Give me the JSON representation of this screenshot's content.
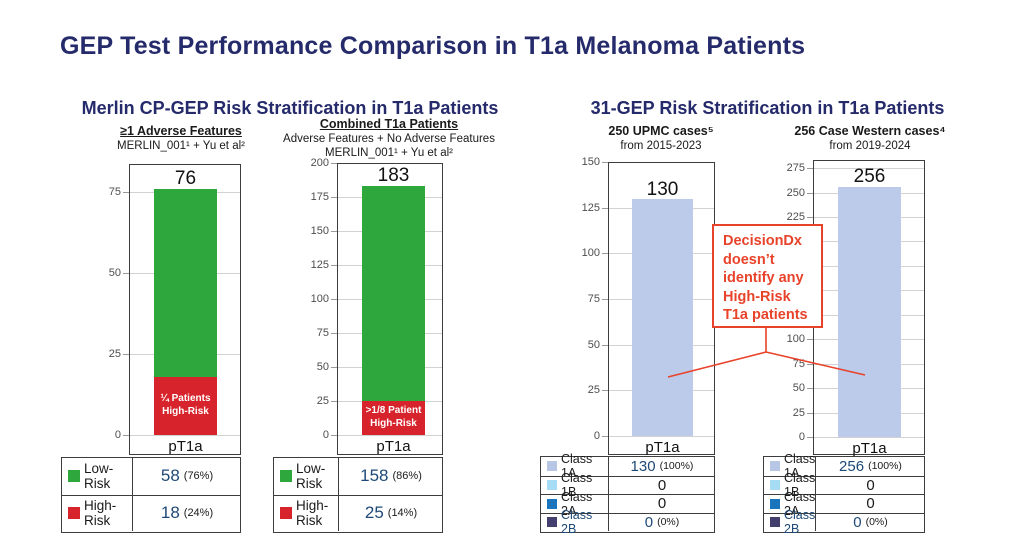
{
  "page": {
    "title": "GEP Test Performance Comparison in T1a Melanoma Patients",
    "title_color": "#252a6b",
    "background": "#ffffff"
  },
  "sections": [
    {
      "title": "Merlin CP-GEP Risk Stratification in T1a Patients"
    },
    {
      "title": "31-GEP Risk Stratification in T1a Patients"
    }
  ],
  "callout": {
    "lines": [
      "DecisionDx",
      "doesn’t",
      "identify any",
      "High-Risk",
      "T1a patients"
    ],
    "color": "#e8432a"
  },
  "colors": {
    "navy": "#252a6b",
    "green": "#2ea83d",
    "red": "#d7242c",
    "light_blue": "#bccbe9",
    "class1b_cyan": "#a7ddf4",
    "class2a_blue": "#1b75bc",
    "class2b_navy": "#423e6e",
    "value_navy": "#1e4976",
    "callout_red": "#e8432a"
  },
  "chart_data": [
    {
      "id": "merlin-adverse-features",
      "type": "bar",
      "subtitle_lines": [
        {
          "text": "≥1 Adverse Features",
          "bold": true,
          "underline": true
        },
        {
          "text": "MERLIN_001¹ + Yu et al²",
          "bold": false,
          "underline": false
        }
      ],
      "categories": [
        "pT1a"
      ],
      "total": 76,
      "total_label": "76",
      "ylim": [
        0,
        75
      ],
      "yticks": [
        0,
        25,
        50,
        75
      ],
      "grid": true,
      "stack": [
        {
          "name": "High-Risk",
          "value": 18,
          "color": "#d7242c",
          "label_lines": [
            "¼ Patients",
            "High-Risk"
          ]
        },
        {
          "name": "Low-Risk",
          "value": 58,
          "color": "#2ea83d",
          "label_lines": []
        }
      ],
      "legend_rows": [
        {
          "label": "Low-Risk",
          "label_color": "#1a1a1a",
          "swatch": "#2ea83d",
          "value": "58",
          "pct": "(76%)"
        },
        {
          "label": "High-Risk",
          "label_color": "#1a1a1a",
          "swatch": "#d7242c",
          "value": "18",
          "pct": "(24%)"
        }
      ]
    },
    {
      "id": "merlin-combined",
      "type": "bar",
      "subtitle_lines": [
        {
          "text": "Combined T1a Patients",
          "bold": true,
          "underline": true
        },
        {
          "text": "Adverse Features + No Adverse Features",
          "bold": false,
          "underline": false
        },
        {
          "text": "MERLIN_001¹ + Yu et al²",
          "bold": false,
          "underline": false
        }
      ],
      "categories": [
        "pT1a"
      ],
      "total": 183,
      "total_label": "183",
      "ylim": [
        0,
        200
      ],
      "yticks": [
        0,
        25,
        50,
        75,
        100,
        125,
        150,
        175,
        200
      ],
      "grid": true,
      "stack": [
        {
          "name": "High-Risk",
          "value": 25,
          "color": "#d7242c",
          "label_lines": [
            ">1/8 Patient",
            "High-Risk"
          ]
        },
        {
          "name": "Low-Risk",
          "value": 158,
          "color": "#2ea83d",
          "label_lines": []
        }
      ],
      "legend_rows": [
        {
          "label": "Low-Risk",
          "label_color": "#1a1a1a",
          "swatch": "#2ea83d",
          "value": "158",
          "pct": "(86%)"
        },
        {
          "label": "High-Risk",
          "label_color": "#1a1a1a",
          "swatch": "#d7242c",
          "value": "25",
          "pct": "(14%)"
        }
      ]
    },
    {
      "id": "upmc-31gep",
      "type": "bar",
      "subtitle_lines": [
        {
          "text": "250 UPMC cases⁵",
          "bold": true,
          "underline": false
        },
        {
          "text": "from 2015-2023",
          "bold": false,
          "underline": false
        }
      ],
      "categories": [
        "pT1a"
      ],
      "total": 130,
      "total_label": "130",
      "ylim": [
        0,
        150
      ],
      "yticks": [
        0,
        25,
        50,
        75,
        100,
        125,
        150
      ],
      "grid": true,
      "stack": [
        {
          "name": "Class 1A",
          "value": 130,
          "color": "#bccbe9",
          "label_lines": []
        }
      ],
      "legend_rows": [
        {
          "label": "Class 1A",
          "label_color": "#1a1a1a",
          "swatch": "#b8c6e6",
          "value": "130",
          "pct": "(100%)"
        },
        {
          "label": "Class 1B",
          "label_color": "#1a1a1a",
          "swatch": "#a7ddf4",
          "value": "0",
          "pct": ""
        },
        {
          "label": "Class 2A",
          "label_color": "#1a1a1a",
          "swatch": "#1b75bc",
          "value": "0",
          "pct": ""
        },
        {
          "label": "Class 2B",
          "label_color": "#1e4976",
          "swatch": "#423e6e",
          "value": "0",
          "pct": "(0%)"
        }
      ]
    },
    {
      "id": "case-western-31gep",
      "type": "bar",
      "subtitle_lines": [
        {
          "text": "256 Case Western cases⁴",
          "bold": true,
          "underline": false
        },
        {
          "text": "from 2019-2024",
          "bold": false,
          "underline": false
        }
      ],
      "categories": [
        "pT1a"
      ],
      "total": 256,
      "total_label": "256",
      "ylim": [
        0,
        275
      ],
      "yticks": [
        0,
        25,
        50,
        75,
        100,
        125,
        150,
        175,
        200,
        225,
        250,
        275
      ],
      "grid": true,
      "stack": [
        {
          "name": "Class 1A",
          "value": 256,
          "color": "#bccbe9",
          "label_lines": []
        }
      ],
      "legend_rows": [
        {
          "label": "Class 1A",
          "label_color": "#1a1a1a",
          "swatch": "#b8c6e6",
          "value": "256",
          "pct": "(100%)"
        },
        {
          "label": "Class 1B",
          "label_color": "#1a1a1a",
          "swatch": "#a7ddf4",
          "value": "0",
          "pct": ""
        },
        {
          "label": "Class 2A",
          "label_color": "#1a1a1a",
          "swatch": "#1b75bc",
          "value": "0",
          "pct": ""
        },
        {
          "label": "Class 2B",
          "label_color": "#1e4976",
          "swatch": "#423e6e",
          "value": "0",
          "pct": "(0%)"
        }
      ]
    }
  ]
}
